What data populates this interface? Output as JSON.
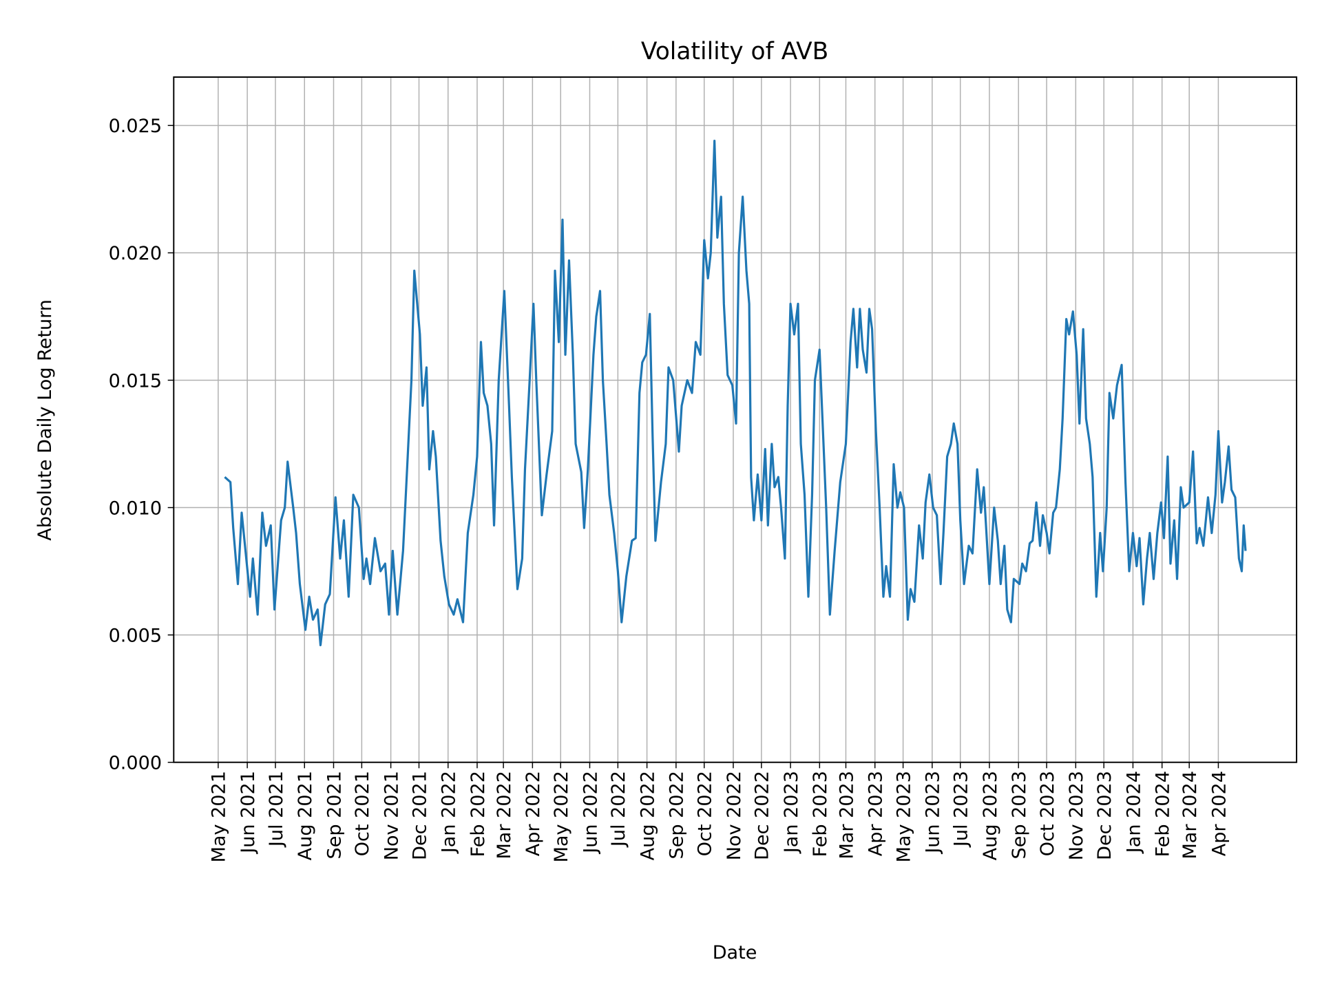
{
  "chart_data": {
    "type": "line",
    "title": "Volatility of AVB",
    "xlabel": "Date",
    "ylabel": "Absolute Daily Log Return",
    "ylim": [
      0,
      0.0269
    ],
    "grid": true,
    "line_color": "#1f77b4",
    "yticks": [
      "0.000",
      "0.005",
      "0.010",
      "0.015",
      "0.020",
      "0.025"
    ],
    "xticks": [
      "May 2021",
      "Jun 2021",
      "Jul 2021",
      "Aug 2021",
      "Sep 2021",
      "Oct 2021",
      "Nov 2021",
      "Dec 2021",
      "Jan 2022",
      "Feb 2022",
      "Mar 2022",
      "Apr 2022",
      "May 2022",
      "Jun 2022",
      "Jul 2022",
      "Aug 2022",
      "Sep 2022",
      "Oct 2022",
      "Nov 2022",
      "Dec 2022",
      "Jan 2023",
      "Feb 2023",
      "Mar 2023",
      "Apr 2023",
      "May 2023",
      "Jun 2023",
      "Jul 2023",
      "Aug 2023",
      "Sep 2023",
      "Oct 2023",
      "Nov 2023",
      "Dec 2023",
      "Jan 2024",
      "Feb 2024",
      "Mar 2024",
      "Apr 2024"
    ],
    "x": [
      "2021-05-08",
      "2021-05-14",
      "2021-05-17",
      "2021-05-22",
      "2021-05-26",
      "2021-06-04",
      "2021-06-07",
      "2021-06-12",
      "2021-06-17",
      "2021-06-21",
      "2021-06-26",
      "2021-06-30",
      "2021-07-07",
      "2021-07-11",
      "2021-07-14",
      "2021-07-20",
      "2021-07-23",
      "2021-07-27",
      "2021-08-02",
      "2021-08-06",
      "2021-08-10",
      "2021-08-15",
      "2021-08-18",
      "2021-08-23",
      "2021-08-28",
      "2021-09-03",
      "2021-09-08",
      "2021-09-12",
      "2021-09-17",
      "2021-09-22",
      "2021-09-28",
      "2021-10-03",
      "2021-10-06",
      "2021-10-10",
      "2021-10-15",
      "2021-10-21",
      "2021-10-26",
      "2021-10-30",
      "2021-11-03",
      "2021-11-08",
      "2021-11-14",
      "2021-11-19",
      "2021-11-23",
      "2021-11-26",
      "2021-12-02",
      "2021-12-05",
      "2021-12-09",
      "2021-12-12",
      "2021-12-16",
      "2021-12-19",
      "2021-12-24",
      "2021-12-28",
      "2022-01-02",
      "2022-01-07",
      "2022-01-11",
      "2022-01-17",
      "2022-01-22",
      "2022-01-28",
      "2022-02-01",
      "2022-02-05",
      "2022-02-08",
      "2022-02-12",
      "2022-02-16",
      "2022-02-19",
      "2022-02-24",
      "2022-03-02",
      "2022-03-07",
      "2022-03-10",
      "2022-03-16",
      "2022-03-21",
      "2022-03-24",
      "2022-03-29",
      "2022-04-02",
      "2022-04-05",
      "2022-04-11",
      "2022-04-16",
      "2022-04-22",
      "2022-04-25",
      "2022-04-29",
      "2022-05-03",
      "2022-05-06",
      "2022-05-10",
      "2022-05-14",
      "2022-05-17",
      "2022-05-23",
      "2022-05-26",
      "2022-05-30",
      "2022-06-05",
      "2022-06-08",
      "2022-06-12",
      "2022-06-15",
      "2022-06-19",
      "2022-06-22",
      "2022-06-27",
      "2022-07-01",
      "2022-07-05",
      "2022-07-10",
      "2022-07-16",
      "2022-07-20",
      "2022-07-24",
      "2022-07-27",
      "2022-07-31",
      "2022-08-04",
      "2022-08-07",
      "2022-08-10",
      "2022-08-16",
      "2022-08-21",
      "2022-08-24",
      "2022-08-29",
      "2022-09-04",
      "2022-09-07",
      "2022-09-13",
      "2022-09-18",
      "2022-09-22",
      "2022-09-27",
      "2022-10-01",
      "2022-10-05",
      "2022-10-08",
      "2022-10-12",
      "2022-10-15",
      "2022-10-19",
      "2022-10-22",
      "2022-10-26",
      "2022-10-31",
      "2022-11-04",
      "2022-11-07",
      "2022-11-11",
      "2022-11-15",
      "2022-11-18",
      "2022-11-20",
      "2022-11-23",
      "2022-11-27",
      "2022-12-01",
      "2022-12-05",
      "2022-12-08",
      "2022-12-12",
      "2022-12-15",
      "2022-12-19",
      "2022-12-22",
      "2022-12-26",
      "2022-12-29",
      "2023-01-01",
      "2023-01-05",
      "2023-01-09",
      "2023-01-12",
      "2023-01-16",
      "2023-01-20",
      "2023-01-24",
      "2023-01-27",
      "2023-02-01",
      "2023-02-04",
      "2023-02-08",
      "2023-02-12",
      "2023-02-17",
      "2023-02-23",
      "2023-03-01",
      "2023-03-06",
      "2023-03-09",
      "2023-03-13",
      "2023-03-16",
      "2023-03-19",
      "2023-03-23",
      "2023-03-26",
      "2023-03-29",
      "2023-04-02",
      "2023-04-06",
      "2023-04-10",
      "2023-04-13",
      "2023-04-17",
      "2023-04-21",
      "2023-04-25",
      "2023-04-28",
      "2023-05-02",
      "2023-05-06",
      "2023-05-09",
      "2023-05-13",
      "2023-05-18",
      "2023-05-22",
      "2023-05-25",
      "2023-05-29",
      "2023-06-02",
      "2023-06-06",
      "2023-06-10",
      "2023-06-13",
      "2023-06-17",
      "2023-06-21",
      "2023-06-24",
      "2023-06-28",
      "2023-07-01",
      "2023-07-05",
      "2023-07-10",
      "2023-07-14",
      "2023-07-19",
      "2023-07-23",
      "2023-07-26",
      "2023-08-01",
      "2023-08-06",
      "2023-08-10",
      "2023-08-13",
      "2023-08-17",
      "2023-08-20",
      "2023-08-24",
      "2023-08-27",
      "2023-09-02",
      "2023-09-05",
      "2023-09-09",
      "2023-09-13",
      "2023-09-16",
      "2023-09-20",
      "2023-09-24",
      "2023-09-27",
      "2023-10-01",
      "2023-10-04",
      "2023-10-08",
      "2023-10-11",
      "2023-10-15",
      "2023-10-18",
      "2023-10-22",
      "2023-10-25",
      "2023-10-29",
      "2023-11-02",
      "2023-11-05",
      "2023-11-09",
      "2023-11-12",
      "2023-11-16",
      "2023-11-19",
      "2023-11-23",
      "2023-11-27",
      "2023-11-30",
      "2023-12-04",
      "2023-12-07",
      "2023-12-11",
      "2023-12-15",
      "2023-12-20",
      "2023-12-24",
      "2023-12-28",
      "2024-01-01",
      "2024-01-05",
      "2024-01-08",
      "2024-01-12",
      "2024-01-16",
      "2024-01-19",
      "2024-01-23",
      "2024-01-27",
      "2024-01-31",
      "2024-02-03",
      "2024-02-07",
      "2024-02-10",
      "2024-02-14",
      "2024-02-17",
      "2024-02-21",
      "2024-02-24",
      "2024-03-01",
      "2024-03-05",
      "2024-03-09",
      "2024-03-12",
      "2024-03-16",
      "2024-03-21",
      "2024-03-25",
      "2024-03-29",
      "2024-04-01",
      "2024-04-05",
      "2024-04-08",
      "2024-04-12",
      "2024-04-15",
      "2024-04-19",
      "2024-04-23",
      "2024-04-26",
      "2024-04-28",
      "2024-04-30"
    ],
    "y": [
      0.0112,
      0.011,
      0.0092,
      0.007,
      0.0098,
      0.0065,
      0.008,
      0.0058,
      0.0098,
      0.0085,
      0.0093,
      0.006,
      0.0095,
      0.01,
      0.0118,
      0.01,
      0.009,
      0.007,
      0.0052,
      0.0065,
      0.0056,
      0.006,
      0.0046,
      0.0062,
      0.0066,
      0.0104,
      0.008,
      0.0095,
      0.0065,
      0.0105,
      0.01,
      0.0072,
      0.008,
      0.007,
      0.0088,
      0.0075,
      0.0078,
      0.0058,
      0.0083,
      0.0058,
      0.0083,
      0.012,
      0.015,
      0.0193,
      0.0168,
      0.014,
      0.0155,
      0.0115,
      0.013,
      0.012,
      0.0087,
      0.0073,
      0.0062,
      0.0058,
      0.0064,
      0.0055,
      0.009,
      0.0105,
      0.012,
      0.0165,
      0.0145,
      0.014,
      0.0125,
      0.0093,
      0.015,
      0.0185,
      0.014,
      0.0112,
      0.0068,
      0.008,
      0.0115,
      0.015,
      0.018,
      0.015,
      0.0097,
      0.0113,
      0.013,
      0.0193,
      0.0165,
      0.0213,
      0.016,
      0.0197,
      0.016,
      0.0125,
      0.0114,
      0.0092,
      0.0115,
      0.016,
      0.0175,
      0.0185,
      0.015,
      0.0125,
      0.0105,
      0.009,
      0.0075,
      0.0055,
      0.0073,
      0.0087,
      0.0088,
      0.0145,
      0.0157,
      0.016,
      0.0176,
      0.0128,
      0.0087,
      0.011,
      0.0125,
      0.0155,
      0.015,
      0.0122,
      0.014,
      0.015,
      0.0145,
      0.0165,
      0.016,
      0.0205,
      0.019,
      0.02,
      0.0244,
      0.0206,
      0.0222,
      0.018,
      0.0152,
      0.0148,
      0.0133,
      0.02,
      0.0222,
      0.0193,
      0.018,
      0.0112,
      0.0095,
      0.0113,
      0.0095,
      0.0123,
      0.0093,
      0.0125,
      0.0108,
      0.0112,
      0.01,
      0.008,
      0.014,
      0.018,
      0.0168,
      0.018,
      0.0125,
      0.0105,
      0.0065,
      0.0105,
      0.015,
      0.0162,
      0.0135,
      0.01,
      0.0058,
      0.0083,
      0.011,
      0.0125,
      0.0165,
      0.0178,
      0.0155,
      0.0178,
      0.0162,
      0.0153,
      0.0178,
      0.017,
      0.013,
      0.01,
      0.0065,
      0.0077,
      0.0065,
      0.0117,
      0.01,
      0.0106,
      0.01,
      0.0056,
      0.0068,
      0.0063,
      0.0093,
      0.008,
      0.0102,
      0.0113,
      0.01,
      0.0097,
      0.007,
      0.009,
      0.012,
      0.0125,
      0.0133,
      0.0125,
      0.0095,
      0.007,
      0.0085,
      0.0082,
      0.0115,
      0.0098,
      0.0108,
      0.007,
      0.01,
      0.0087,
      0.007,
      0.0085,
      0.006,
      0.0055,
      0.0072,
      0.007,
      0.0078,
      0.0075,
      0.0086,
      0.0087,
      0.0102,
      0.0085,
      0.0097,
      0.009,
      0.0082,
      0.0098,
      0.01,
      0.0115,
      0.0135,
      0.0174,
      0.0168,
      0.0177,
      0.016,
      0.0133,
      0.017,
      0.0135,
      0.0125,
      0.0112,
      0.0065,
      0.009,
      0.0075,
      0.01,
      0.0145,
      0.0135,
      0.0148,
      0.0156,
      0.011,
      0.0075,
      0.009,
      0.0077,
      0.0088,
      0.0062,
      0.008,
      0.009,
      0.0072,
      0.009,
      0.0102,
      0.0088,
      0.012,
      0.0078,
      0.0095,
      0.0072,
      0.0108,
      0.01,
      0.0102,
      0.0122,
      0.0086,
      0.0092,
      0.0085,
      0.0104,
      0.009,
      0.0105,
      0.013,
      0.0102,
      0.011,
      0.0124,
      0.0107,
      0.0104,
      0.008,
      0.0075,
      0.0093,
      0.0083
    ]
  }
}
